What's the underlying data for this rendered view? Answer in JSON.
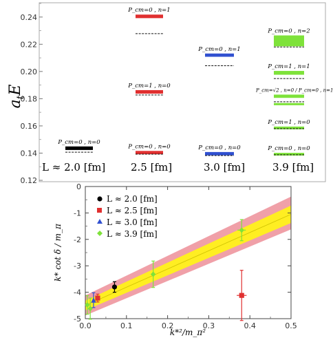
{
  "chart_data": [
    {
      "type": "scatter",
      "ylabel": "a_t E",
      "ylim": [
        0.12,
        0.25
      ],
      "yticks": [
        "0.12",
        "0.14",
        "0.16",
        "0.18",
        "0.20",
        "0.22",
        "0.24"
      ],
      "xcategories": [
        "L ≈ 2.0 [fm]",
        "2.5 [fm]",
        "3.0 [fm]",
        "3.9 [fm]"
      ],
      "levels": [
        {
          "group": 0,
          "label": "P_cm=0 , n=0",
          "value": 0.1436,
          "width": 0.0013,
          "color": "#000000",
          "dashed": 0.1407
        },
        {
          "group": 1,
          "label": "P_cm=0 , n=0",
          "value": 0.1404,
          "width": 0.0012,
          "color": "#e03030",
          "dashed": 0.1392
        },
        {
          "group": 1,
          "label": "P_cm=1 , n=0",
          "value": 0.185,
          "width": 0.0013,
          "color": "#e03030",
          "dashed": 0.1827
        },
        {
          "group": 1,
          "label": "P_cm=0 , n=1",
          "value": 0.2405,
          "width": 0.0013,
          "color": "#e03030",
          "dashed": 0.2278
        },
        {
          "group": 2,
          "label": "P_cm=0 , n=0",
          "value": 0.1396,
          "width": 0.0012,
          "color": "#3050d0",
          "dashed": 0.1382
        },
        {
          "group": 2,
          "label": "P_cm=0 , n=1",
          "value": 0.212,
          "width": 0.0012,
          "color": "#3050d0",
          "dashed": 0.2042
        },
        {
          "group": 3,
          "label": "P_cm=0 , n=0",
          "value": 0.1392,
          "width": 0.001,
          "color": "#7ee23a",
          "dashed": 0.1388
        },
        {
          "group": 3,
          "label": "P_cm=1 , n=0",
          "value": 0.1585,
          "width": 0.001,
          "color": "#7ee23a",
          "dashed": 0.158
        },
        {
          "group": 3,
          "label": "P_cm=√2 , n=0 / P_cm=0 , n=1",
          "value": 0.1818,
          "width": 0.0012,
          "color": "#7ee23a",
          "dashed": 0.1777
        },
        {
          "group": 3,
          "label": "",
          "value": 0.176,
          "width": 0.0008,
          "color": "#7ee23a",
          "dashed": null
        },
        {
          "group": 3,
          "label": "P_cm=1 , n=1",
          "value": 0.199,
          "width": 0.0014,
          "color": "#7ee23a",
          "dashed": 0.1948
        },
        {
          "group": 3,
          "label": "P_cm=0 , n=2",
          "value": 0.2225,
          "width": 0.004,
          "color": "#7ee23a",
          "dashed": 0.218
        }
      ]
    },
    {
      "type": "scatter",
      "xlabel": "k*²/m_π²",
      "ylabel": "k* cot δ / m_π",
      "xlim": [
        0,
        0.5
      ],
      "ylim": [
        -5,
        0
      ],
      "xticks": [
        "0.0",
        "0.1",
        "0.2",
        "0.3",
        "0.4",
        "0.5"
      ],
      "yticks": [
        "0",
        "-1",
        "-2",
        "-3",
        "-4",
        "-5"
      ],
      "legend_position": "top-left",
      "series": [
        {
          "name": "L ≈ 2.0 [fm]",
          "color": "#000000",
          "marker": "circle",
          "points": [
            {
              "x": 0.071,
              "y": -3.8,
              "xerr": 0.005,
              "yerr": 0.2
            }
          ]
        },
        {
          "name": "L ≈ 2.5 [fm]",
          "color": "#e03030",
          "marker": "square",
          "points": [
            {
              "x": 0.03,
              "y": -4.22,
              "xerr": 0.004,
              "yerr": 0.15
            },
            {
              "x": 0.38,
              "y": -4.12,
              "xerr": 0.012,
              "yerr": 0.95
            }
          ]
        },
        {
          "name": "L ≈ 3.0 [fm]",
          "color": "#3050d0",
          "marker": "triangle",
          "points": [
            {
              "x": 0.02,
              "y": -4.3,
              "xerr": 0.003,
              "yerr": 0.28
            }
          ]
        },
        {
          "name": "L ≈ 3.9 [fm]",
          "color": "#7ee23a",
          "marker": "diamond",
          "points": [
            {
              "x": 0.005,
              "y": -4.48,
              "xerr": 0.002,
              "yerr": 0.35
            },
            {
              "x": 0.012,
              "y": -4.62,
              "xerr": 0.002,
              "yerr": 0.4
            },
            {
              "x": 0.165,
              "y": -3.32,
              "xerr": 0.006,
              "yerr": 0.5
            },
            {
              "x": 0.38,
              "y": -1.65,
              "xerr": 0.01,
              "yerr": 0.4
            }
          ]
        }
      ],
      "fit": {
        "x": [
          0.0,
          0.5
        ],
        "central": [
          -4.5,
          -1.05
        ],
        "inner_band": [
          [
            -4.68,
            -4.32
          ],
          [
            -1.38,
            -0.72
          ]
        ],
        "outer_band": [
          [
            -4.88,
            -4.12
          ],
          [
            -1.62,
            -0.38
          ]
        ],
        "inner_color": "#ffee22",
        "outer_color": "#f0a0a8"
      }
    }
  ]
}
